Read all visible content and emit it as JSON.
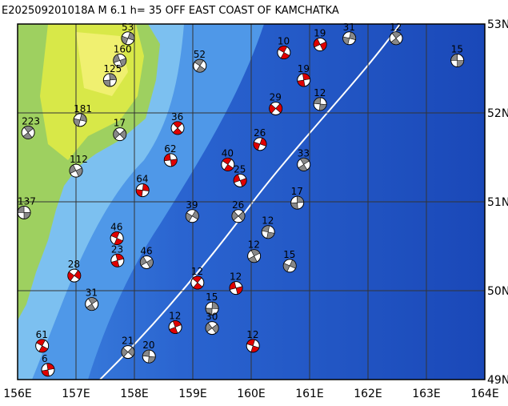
{
  "title": "E202509201018A M 6.1 h= 35 OFF EAST COAST OF KAMCHATKA",
  "map": {
    "xlim": [
      156,
      164
    ],
    "ylim": [
      49,
      53
    ],
    "xticks": [
      {
        "value": 156,
        "label": "156E"
      },
      {
        "value": 157,
        "label": "157E"
      },
      {
        "value": 158,
        "label": "158E"
      },
      {
        "value": 159,
        "label": "159E"
      },
      {
        "value": 160,
        "label": "160E"
      },
      {
        "value": 161,
        "label": "161E"
      },
      {
        "value": 162,
        "label": "162E"
      },
      {
        "value": 163,
        "label": "163E"
      },
      {
        "value": 164,
        "label": "164E"
      }
    ],
    "yticks": [
      {
        "value": 49,
        "label": "49N"
      },
      {
        "value": 50,
        "label": "50N"
      },
      {
        "value": 51,
        "label": "51N"
      },
      {
        "value": 52,
        "label": "52N"
      },
      {
        "value": 53,
        "label": "53N"
      }
    ],
    "grid": true,
    "events": [
      {
        "lon": 163.53,
        "lat": 52.59,
        "depth": 15,
        "color": "#888888"
      },
      {
        "lon": 162.48,
        "lat": 52.84,
        "depth": 12,
        "color": "#888888"
      },
      {
        "lon": 161.68,
        "lat": 52.84,
        "depth": 31,
        "color": "#888888"
      },
      {
        "lon": 161.18,
        "lat": 52.77,
        "depth": 19,
        "color": "#e00000"
      },
      {
        "lon": 160.56,
        "lat": 52.68,
        "depth": 10,
        "color": "#e00000"
      },
      {
        "lon": 160.9,
        "lat": 52.37,
        "depth": 19,
        "color": "#e00000"
      },
      {
        "lon": 160.42,
        "lat": 52.05,
        "depth": 29,
        "color": "#e00000"
      },
      {
        "lon": 161.18,
        "lat": 52.1,
        "depth": 12,
        "color": "#888888"
      },
      {
        "lon": 160.9,
        "lat": 51.42,
        "depth": 33,
        "color": "#888888"
      },
      {
        "lon": 160.15,
        "lat": 51.65,
        "depth": 26,
        "color": "#e00000"
      },
      {
        "lon": 159.81,
        "lat": 51.24,
        "depth": 25,
        "color": "#e00000"
      },
      {
        "lon": 159.6,
        "lat": 51.42,
        "depth": 40,
        "color": "#e00000"
      },
      {
        "lon": 160.79,
        "lat": 50.99,
        "depth": 17,
        "color": "#888888"
      },
      {
        "lon": 159.78,
        "lat": 50.84,
        "depth": 26,
        "color": "#888888"
      },
      {
        "lon": 160.29,
        "lat": 50.66,
        "depth": 12,
        "color": "#888888"
      },
      {
        "lon": 160.05,
        "lat": 50.39,
        "depth": 12,
        "color": "#888888"
      },
      {
        "lon": 160.66,
        "lat": 50.28,
        "depth": 15,
        "color": "#888888"
      },
      {
        "lon": 159.74,
        "lat": 50.03,
        "depth": 12,
        "color": "#e00000"
      },
      {
        "lon": 159.08,
        "lat": 50.09,
        "depth": 12,
        "color": "#e00000"
      },
      {
        "lon": 159.33,
        "lat": 49.8,
        "depth": 15,
        "color": "#888888"
      },
      {
        "lon": 159.33,
        "lat": 49.58,
        "depth": 30,
        "color": "#888888"
      },
      {
        "lon": 160.03,
        "lat": 49.38,
        "depth": 12,
        "color": "#e00000"
      },
      {
        "lon": 158.7,
        "lat": 49.59,
        "depth": 12,
        "color": "#e00000"
      },
      {
        "lon": 158.99,
        "lat": 50.84,
        "depth": 39,
        "color": "#888888"
      },
      {
        "lon": 158.62,
        "lat": 51.47,
        "depth": 62,
        "color": "#e00000"
      },
      {
        "lon": 158.74,
        "lat": 51.83,
        "depth": 36,
        "color": "#e00000"
      },
      {
        "lon": 158.14,
        "lat": 51.13,
        "depth": 64,
        "color": "#e00000"
      },
      {
        "lon": 158.21,
        "lat": 50.32,
        "depth": 46,
        "color": "#888888"
      },
      {
        "lon": 157.7,
        "lat": 50.59,
        "depth": 46,
        "color": "#e00000"
      },
      {
        "lon": 157.71,
        "lat": 50.34,
        "depth": 23,
        "color": "#e00000"
      },
      {
        "lon": 156.97,
        "lat": 50.17,
        "depth": 28,
        "color": "#e00000"
      },
      {
        "lon": 156.11,
        "lat": 50.88,
        "depth": 137,
        "color": "#888888"
      },
      {
        "lon": 156.18,
        "lat": 51.78,
        "depth": 223,
        "color": "#888888"
      },
      {
        "lon": 157.07,
        "lat": 51.92,
        "depth": 181,
        "color": "#888888"
      },
      {
        "lon": 157.0,
        "lat": 51.35,
        "depth": 112,
        "color": "#888888"
      },
      {
        "lon": 156.42,
        "lat": 49.38,
        "depth": 61,
        "color": "#e00000"
      },
      {
        "lon": 156.52,
        "lat": 49.11,
        "depth": 6,
        "color": "#e00000"
      },
      {
        "lon": 157.89,
        "lat": 49.31,
        "depth": 21,
        "color": "#888888"
      },
      {
        "lon": 158.25,
        "lat": 49.26,
        "depth": 20,
        "color": "#888888"
      },
      {
        "lon": 157.27,
        "lat": 49.85,
        "depth": 31,
        "color": "#888888"
      },
      {
        "lon": 157.89,
        "lat": 52.84,
        "depth": 53,
        "color": "#888888"
      },
      {
        "lon": 157.75,
        "lat": 52.59,
        "depth": 160,
        "color": "#888888"
      },
      {
        "lon": 159.12,
        "lat": 52.53,
        "depth": 52,
        "color": "#888888"
      },
      {
        "lon": 157.58,
        "lat": 52.37,
        "depth": 125,
        "color": "#888888"
      },
      {
        "lon": 157.75,
        "lat": 51.76,
        "depth": 17,
        "color": "#888888"
      }
    ]
  }
}
